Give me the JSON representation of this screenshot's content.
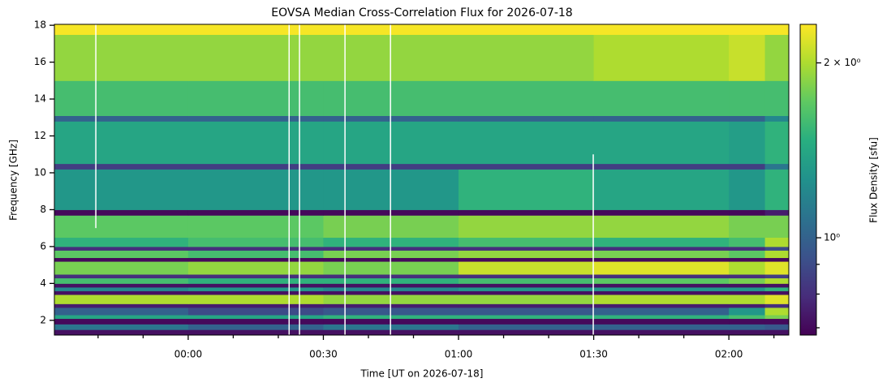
{
  "chart_data": {
    "type": "heatmap",
    "title": "EOVSA Median Cross-Correlation Flux for 2026-07-18",
    "xlabel": "Time [UT on 2026-07-18]",
    "ylabel": "Frequency [GHz]",
    "colormap": "viridis",
    "xlim": [
      -29.7,
      133.3
    ],
    "xticks": [
      {
        "value": 0,
        "label": "00:00"
      },
      {
        "value": 30,
        "label": "00:30"
      },
      {
        "value": 60,
        "label": "01:00"
      },
      {
        "value": 90,
        "label": "01:30"
      },
      {
        "value": 120,
        "label": "02:00"
      }
    ],
    "xminorticks": [
      -20,
      -10,
      10,
      20,
      40,
      50,
      70,
      80,
      100,
      110,
      130
    ],
    "ylim": [
      1.2,
      18.05
    ],
    "yticks": [
      2,
      4,
      6,
      8,
      10,
      12,
      14,
      16,
      18
    ],
    "x_edges": [
      -29.7,
      0,
      30,
      60,
      90,
      120,
      128,
      133.3
    ],
    "y_edges": [
      1.2,
      1.5,
      1.8,
      2.1,
      2.3,
      2.7,
      2.9,
      3.4,
      3.6,
      3.8,
      4.0,
      4.3,
      4.5,
      5.2,
      5.4,
      5.8,
      6.0,
      6.5,
      7.7,
      8.0,
      10.2,
      10.5,
      12.8,
      13.1,
      15.0,
      17.5,
      18.05
    ],
    "z": [
      [
        0.72,
        0.72,
        0.72,
        0.72,
        0.72,
        0.72,
        0.72
      ],
      [
        1.1,
        1.0,
        1.1,
        1.0,
        1.0,
        1.0,
        0.95
      ],
      [
        0.7,
        0.7,
        0.7,
        0.7,
        0.7,
        0.7,
        0.7
      ],
      [
        1.4,
        1.4,
        1.5,
        1.5,
        1.5,
        1.6,
        1.8
      ],
      [
        1.0,
        0.9,
        0.95,
        0.95,
        1.0,
        1.3,
        2.0
      ],
      [
        0.75,
        0.75,
        0.75,
        0.75,
        0.75,
        0.75,
        0.8
      ],
      [
        2.0,
        2.0,
        1.9,
        1.9,
        2.0,
        2.0,
        2.2
      ],
      [
        0.72,
        0.72,
        0.72,
        0.72,
        0.72,
        0.72,
        0.72
      ],
      [
        1.2,
        1.3,
        1.2,
        1.3,
        1.3,
        1.3,
        1.5
      ],
      [
        0.72,
        0.72,
        0.72,
        0.72,
        0.72,
        0.72,
        0.72
      ],
      [
        1.6,
        1.5,
        1.5,
        1.6,
        1.7,
        1.8,
        2.0
      ],
      [
        0.8,
        0.8,
        0.8,
        0.8,
        0.8,
        0.8,
        0.85
      ],
      [
        1.8,
        1.9,
        1.8,
        2.1,
        2.2,
        2.0,
        2.2
      ],
      [
        0.7,
        0.7,
        0.7,
        0.7,
        0.7,
        0.7,
        0.7
      ],
      [
        1.7,
        1.6,
        1.8,
        1.9,
        1.8,
        1.7,
        2.0
      ],
      [
        0.8,
        0.8,
        0.8,
        0.8,
        0.8,
        0.8,
        0.9
      ],
      [
        1.5,
        1.6,
        1.5,
        1.6,
        1.5,
        1.6,
        2.0
      ],
      [
        1.7,
        1.7,
        1.8,
        1.9,
        1.9,
        1.8,
        1.8
      ],
      [
        0.7,
        0.7,
        0.7,
        0.7,
        0.7,
        0.7,
        0.75
      ],
      [
        1.3,
        1.3,
        1.3,
        1.5,
        1.4,
        1.3,
        1.5
      ],
      [
        0.85,
        0.85,
        0.85,
        0.85,
        0.85,
        0.85,
        1.1
      ],
      [
        1.4,
        1.4,
        1.4,
        1.4,
        1.4,
        1.35,
        1.5
      ],
      [
        1.0,
        1.0,
        1.0,
        1.0,
        1.0,
        1.0,
        1.2
      ],
      [
        1.6,
        1.6,
        1.6,
        1.6,
        1.6,
        1.6,
        1.6
      ],
      [
        1.9,
        1.9,
        1.9,
        1.9,
        2.0,
        2.1,
        1.9
      ],
      [
        2.3,
        2.3,
        2.3,
        2.3,
        2.3,
        2.3,
        2.3
      ]
    ],
    "gaps": [
      {
        "x": -20.5,
        "y0": 7.0,
        "y1": 18.05
      },
      {
        "x": 22.4,
        "y0": 1.2,
        "y1": 18.05
      },
      {
        "x": 24.7,
        "y0": 1.2,
        "y1": 18.05
      },
      {
        "x": 34.8,
        "y0": 1.2,
        "y1": 18.05
      },
      {
        "x": 44.9,
        "y0": 1.2,
        "y1": 18.05
      },
      {
        "x": 89.9,
        "y0": 1.2,
        "y1": 11.0
      }
    ],
    "colorbar": {
      "label": "Flux Density [sfu]",
      "scale": "log",
      "lim": [
        0.68,
        2.33
      ],
      "ticks": [
        {
          "value": 1,
          "label": "10⁰"
        },
        {
          "value": 2,
          "label": "2 × 10⁰"
        }
      ],
      "minorticks": [
        0.7,
        0.8,
        0.9
      ]
    }
  }
}
